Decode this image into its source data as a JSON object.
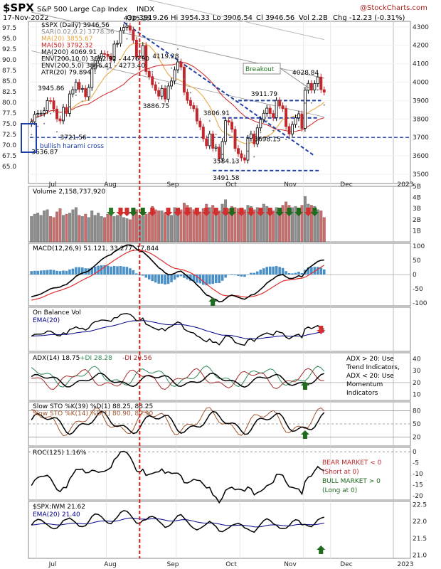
{
  "header": {
    "symbol": "$SPX",
    "name": "S&P 500 Large Cap Index",
    "exchange": "INDX",
    "date": "17-Nov-2022",
    "open": "Op 3919.26",
    "high": "Hi 3954.33",
    "low": "Lo 3906.54",
    "close": "Cl 3946.56",
    "volume": "Vol 2.2B",
    "change": "Chg -12.23 (-0.31%)",
    "watermark": "@StockCharts.com"
  },
  "chart_data": [
    {
      "type": "line",
      "panel": "price",
      "legend": [
        {
          "text": "$SPX (Daily) 3946.56",
          "color": "#000000"
        },
        {
          "text": "SAR(0.02,0.2) 3778.36",
          "color": "#888888"
        },
        {
          "text": "MA(20) 3855.67",
          "color": "#e8a33a"
        },
        {
          "text": "MA(50) 3792.32",
          "color": "#cc2222"
        },
        {
          "text": "MA(200) 4069.91",
          "color": "#000000"
        },
        {
          "text": "ENV(200,10.0) 3662.92 - 4476.90",
          "color": "#000000"
        },
        {
          "text": "ENV(200,5.0) 3866.41 - 4273.40",
          "color": "#000000"
        },
        {
          "text": "ATR(20) 79.894",
          "color": "#000000"
        }
      ],
      "right_ticks": [
        "4300",
        "4200",
        "4100",
        "4000",
        "3900",
        "3800",
        "3700",
        "3600",
        "3500"
      ],
      "left_ticks": [
        "97.5",
        "95.0",
        "92.5",
        "90.0",
        "87.5",
        "85.0",
        "82.5",
        "80.0",
        "77.5",
        "75.0",
        "72.5",
        "70.0",
        "67.5",
        "65.0"
      ],
      "x_ticks": [
        "Jul",
        "Aug",
        "Sep",
        "Oct",
        "Nov",
        "Dec",
        "2023"
      ],
      "ylim": [
        3450,
        4330
      ],
      "close": [
        3785,
        3825,
        3830,
        3831,
        3845,
        3900,
        3899,
        3854,
        3801,
        3790,
        3863,
        3830,
        3936,
        3959,
        3999,
        3961,
        3966,
        3921,
        3971,
        4072,
        4118,
        4130,
        4155,
        4151,
        4140,
        4122,
        4207,
        4210,
        4280,
        4297,
        4305,
        4283,
        4228,
        4137,
        4141,
        4199,
        4058,
        4030,
        3986,
        3955,
        3924,
        3966,
        3908,
        3979,
        4006,
        4067,
        4110,
        4082,
        3946,
        3901,
        3873,
        3856,
        3789,
        3757,
        3693,
        3655,
        3719,
        3641,
        3647,
        3585,
        3678,
        3791,
        3783,
        3744,
        3640,
        3612,
        3589,
        3577,
        3695,
        3719,
        3665,
        3752,
        3797,
        3831,
        3859,
        3830,
        3807,
        3901,
        3872,
        3856,
        3759,
        3719,
        3770,
        3806,
        3828,
        3749,
        3956,
        3993,
        3957,
        3992,
        4028,
        3959,
        3946
      ],
      "annotations": [
        "4325.28",
        "4119.28",
        "3886.75",
        "3806.91",
        "3911.79",
        "4028.84",
        "3945.86",
        "3721.56",
        "3636.87",
        "3698.15",
        "3584.13",
        "3491.58"
      ],
      "callouts": [
        "Breakout",
        "bullish harami cross"
      ]
    },
    {
      "type": "bar",
      "panel": "volume",
      "legend": [
        {
          "text": "Volume 2,158,737,920",
          "color": "#000000"
        }
      ],
      "right_ticks": [
        "5B",
        "4B",
        "3B",
        "2B",
        "1B"
      ],
      "ylim": [
        0,
        5
      ],
      "values": [
        2.3,
        2.5,
        2.6,
        2.4,
        2.8,
        2.9,
        2.3,
        2.2,
        2.7,
        3.0,
        2.4,
        2.5,
        2.6,
        2.9,
        3.1,
        2.4,
        2.3,
        2.5,
        2.2,
        2.8,
        2.4,
        2.6,
        2.3,
        2.2,
        2.5,
        2.6,
        2.3,
        2.4,
        2.8,
        2.2,
        2.1,
        2.0,
        2.6,
        2.9,
        2.4,
        2.3,
        2.5,
        2.6,
        3.2,
        2.9,
        2.8,
        2.8,
        2.6,
        2.5,
        2.4,
        3.1,
        2.7,
        2.9,
        3.5,
        3.3,
        3.1,
        2.9,
        2.8,
        2.7,
        3.0,
        3.4,
        3.1,
        3.3,
        2.9,
        2.8,
        3.4,
        3.8,
        3.0,
        3.2,
        3.1,
        3.0,
        2.8,
        2.9,
        3.3,
        3.2,
        2.9,
        3.1,
        3.0,
        3.4,
        3.2,
        3.0,
        2.8,
        3.1,
        2.9,
        3.3,
        3.6,
        3.3,
        3.1,
        3.2,
        3.0,
        3.3,
        4.1,
        3.4,
        3.3,
        3.2,
        2.9,
        2.8,
        2.2
      ]
    },
    {
      "type": "line",
      "panel": "macd",
      "legend": [
        {
          "text": "MACD(12,26,9) 51.121, 33.277, 17.844",
          "color": "#000000"
        }
      ],
      "right_ticks": [
        "100",
        "50",
        "0",
        "-50",
        "-100"
      ],
      "ylim": [
        -110,
        110
      ],
      "macd": [
        -78,
        -75,
        -72,
        -68,
        -62,
        -56,
        -50,
        -47,
        -46,
        -44,
        -38,
        -35,
        -26,
        -17,
        -6,
        0,
        5,
        8,
        13,
        22,
        32,
        42,
        52,
        60,
        66,
        70,
        80,
        86,
        94,
        99,
        104,
        104,
        100,
        90,
        82,
        80,
        70,
        60,
        48,
        36,
        24,
        17,
        6,
        0,
        0,
        4,
        10,
        12,
        3,
        -6,
        -16,
        -24,
        -36,
        -46,
        -60,
        -72,
        -76,
        -84,
        -88,
        -96,
        -94,
        -85,
        -76,
        -72,
        -76,
        -80,
        -84,
        -87,
        -80,
        -72,
        -70,
        -62,
        -52,
        -42,
        -30,
        -22,
        -15,
        -6,
        -2,
        0,
        -8,
        -14,
        -14,
        -10,
        -4,
        -8,
        8,
        22,
        30,
        38,
        46,
        50,
        51
      ],
      "signal": [
        -90,
        -88,
        -85,
        -82,
        -77,
        -72,
        -67,
        -63,
        -59,
        -56,
        -52,
        -48,
        -44,
        -38,
        -32,
        -26,
        -20,
        -14,
        -9,
        -3,
        4,
        11,
        19,
        27,
        35,
        42,
        50,
        57,
        64,
        71,
        77,
        82,
        85,
        86,
        85,
        84,
        81,
        77,
        71,
        64,
        56,
        49,
        41,
        33,
        27,
        22,
        20,
        18,
        15,
        11,
        6,
        0,
        -7,
        -15,
        -24,
        -34,
        -42,
        -51,
        -58,
        -66,
        -72,
        -74,
        -75,
        -74,
        -74,
        -75,
        -77,
        -79,
        -79,
        -78,
        -76,
        -73,
        -69,
        -64,
        -57,
        -50,
        -43,
        -36,
        -29,
        -23,
        -20,
        -19,
        -18,
        -16,
        -14,
        -13,
        -9,
        -3,
        4,
        11,
        19,
        26,
        33
      ],
      "histogram": [
        12,
        13,
        13,
        14,
        15,
        16,
        17,
        16,
        13,
        12,
        14,
        13,
        18,
        21,
        26,
        26,
        25,
        22,
        22,
        25,
        28,
        31,
        33,
        33,
        31,
        28,
        30,
        29,
        30,
        28,
        27,
        22,
        15,
        4,
        -3,
        -4,
        -11,
        -17,
        -23,
        -28,
        -32,
        -32,
        -35,
        -33,
        -27,
        -18,
        -10,
        -6,
        -12,
        -17,
        -22,
        -24,
        -29,
        -31,
        -36,
        -38,
        -34,
        -33,
        -30,
        -30,
        -22,
        -11,
        -1,
        2,
        -2,
        -5,
        -7,
        -8,
        -1,
        6,
        6,
        11,
        17,
        22,
        27,
        28,
        28,
        30,
        27,
        23,
        12,
        5,
        4,
        6,
        10,
        5,
        17,
        25,
        26,
        27,
        27,
        24,
        18
      ]
    },
    {
      "type": "line",
      "panel": "obv",
      "legend": [
        {
          "text": "On Balance Vol",
          "color": "#000000"
        },
        {
          "text": "EMA(20)",
          "color": "#00008b"
        }
      ],
      "right_ticks": []
    },
    {
      "type": "line",
      "panel": "adx",
      "legend": [
        {
          "text": "ADX(14) 18.75",
          "color": "#000000"
        },
        {
          "text": "+DI 28.28",
          "color": "#2e8b57"
        },
        {
          "text": "-DI 20.56",
          "color": "#a52a2a"
        }
      ],
      "right_ticks": [
        "40",
        "30",
        "20",
        "10"
      ],
      "ylim": [
        5,
        45
      ],
      "notes": [
        "ADX > 20: Use",
        "Trend Indicators,",
        "ADX < 20: Use",
        "Momentum",
        "Indicators"
      ]
    },
    {
      "type": "line",
      "panel": "sto",
      "legend": [
        {
          "text": "Slow STO %K(39) %D(1) 88.25, 88.25",
          "color": "#000000"
        },
        {
          "text": "Slow STO %K(14) %D(1) 80.90, 80.90",
          "color": "#a0522d"
        }
      ],
      "right_ticks": [
        "80",
        "50",
        "20"
      ],
      "ylim": [
        0,
        100
      ]
    },
    {
      "type": "line",
      "panel": "roc",
      "legend": [
        {
          "text": "ROC(125) 1.16%",
          "color": "#000000"
        }
      ],
      "right_ticks": [
        "0",
        "-5",
        "-10",
        "-15",
        "-20"
      ],
      "ylim": [
        -22,
        2
      ],
      "notes": [
        "BEAR MARKET < 0",
        "(Short at 0)",
        "BULL MARKET > 0",
        "(Long at 0)"
      ]
    },
    {
      "type": "line",
      "panel": "ratio",
      "legend": [
        {
          "text": "$SPX:IWM 21.62",
          "color": "#000000"
        },
        {
          "text": "EMA(20) 21.40",
          "color": "#00008b"
        }
      ],
      "right_ticks": [
        "22.5",
        "22.0",
        "21.5",
        "21.0"
      ],
      "ylim": [
        20.9,
        22.6
      ]
    }
  ]
}
